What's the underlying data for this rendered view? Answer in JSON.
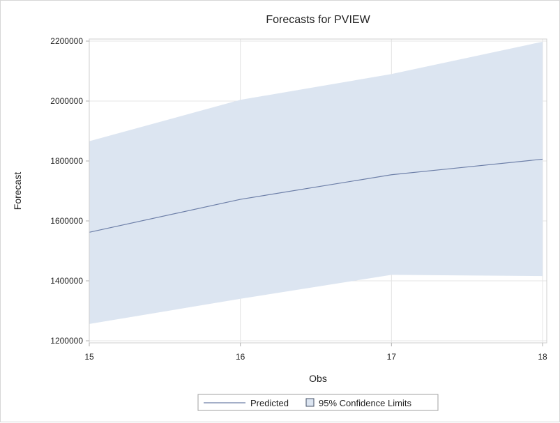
{
  "chart_data": {
    "type": "line",
    "title": "Forecasts for PVIEW",
    "xlabel": "Obs",
    "ylabel": "Forecast",
    "x": [
      15,
      16,
      17,
      18
    ],
    "xlim": [
      15,
      18
    ],
    "ylim": [
      1200000,
      2200000
    ],
    "xticks": [
      "15",
      "16",
      "17",
      "18"
    ],
    "yticks": [
      "1200000",
      "1400000",
      "1600000",
      "1800000",
      "2000000",
      "2200000"
    ],
    "grid": true,
    "legend_position": "bottom-center",
    "series": [
      {
        "name": "Predicted",
        "kind": "line",
        "color": "#6d7fa8",
        "values": [
          1562000,
          1672000,
          1754000,
          1806000
        ]
      }
    ],
    "band": {
      "name": "95% Confidence Limits",
      "kind": "area",
      "color": "#dce5f1",
      "edge_color": "#445066",
      "lower": [
        1256000,
        1340000,
        1420000,
        1416000
      ],
      "upper": [
        1866000,
        2004000,
        2090000,
        2198000
      ]
    },
    "colors": {
      "grid": "#e4e4e4",
      "axis": "#b0b0b0",
      "legend_border": "#a0a0a0"
    }
  }
}
